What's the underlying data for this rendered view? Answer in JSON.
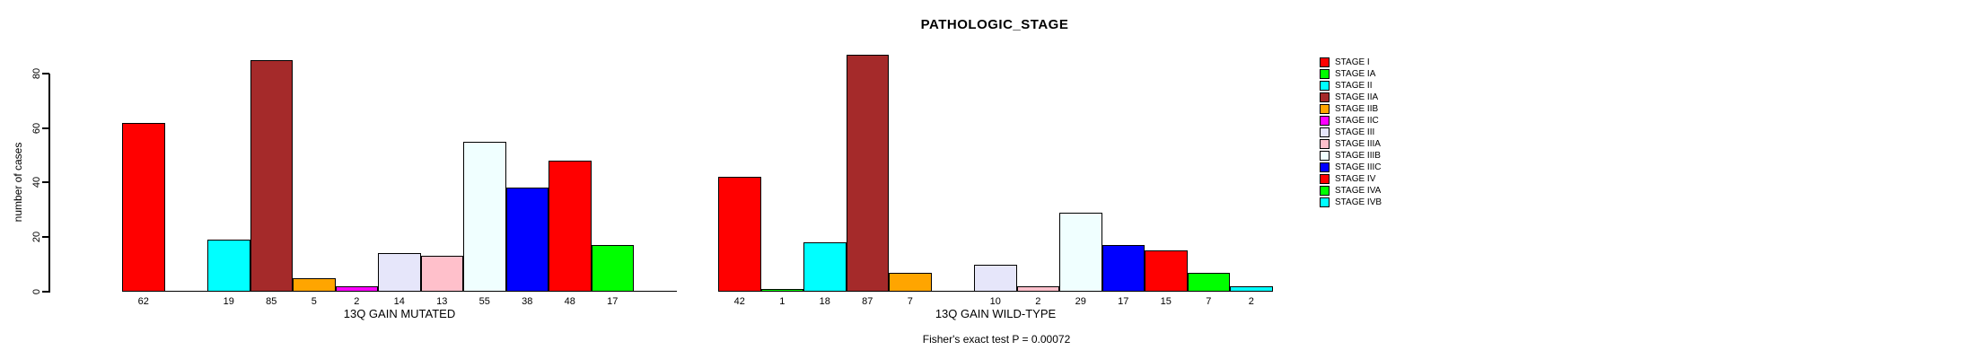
{
  "title": "PATHOLOGIC_STAGE",
  "annotation": "Fisher's exact test P = 0.00072",
  "chart_data": {
    "type": "bar",
    "title": "PATHOLOGIC_STAGE",
    "ylabel": "number of cases",
    "ylim": [
      0,
      87
    ],
    "yticks": [
      0,
      20,
      40,
      60,
      80
    ],
    "grid": false,
    "legend_position": "right",
    "categories": [
      "STAGE I",
      "STAGE IA",
      "STAGE II",
      "STAGE IIA",
      "STAGE IIB",
      "STAGE IIC",
      "STAGE III",
      "STAGE IIIA",
      "STAGE IIIB",
      "STAGE IIIC",
      "STAGE IV",
      "STAGE IVA",
      "STAGE IVB"
    ],
    "colors": [
      "#FF0000",
      "#00FF00",
      "#00FFFF",
      "#A52A2A",
      "#FFA500",
      "#FF00FF",
      "#E6E6FA",
      "#FFC0CB",
      "#F0FFFF",
      "#0000FF",
      "#FF0000",
      "#00FF00",
      "#00FFFF"
    ],
    "panels": [
      {
        "xlabel": "13Q GAIN MUTATED",
        "values": [
          62,
          0,
          19,
          85,
          5,
          2,
          14,
          13,
          55,
          38,
          48,
          17,
          0
        ]
      },
      {
        "xlabel": "13Q GAIN WILD-TYPE",
        "values": [
          42,
          1,
          18,
          87,
          7,
          0,
          10,
          2,
          29,
          17,
          15,
          7,
          2
        ]
      }
    ],
    "bar_value_labels": "values shown under each bar; zero-value bars drawn as flat line with no label",
    "annotation": "Fisher's exact test P = 0.00072"
  },
  "legend": {
    "items": [
      {
        "label": "STAGE I",
        "color": "#FF0000"
      },
      {
        "label": "STAGE IA",
        "color": "#00FF00"
      },
      {
        "label": "STAGE II",
        "color": "#00FFFF"
      },
      {
        "label": "STAGE IIA",
        "color": "#A52A2A"
      },
      {
        "label": "STAGE IIB",
        "color": "#FFA500"
      },
      {
        "label": "STAGE IIC",
        "color": "#FF00FF"
      },
      {
        "label": "STAGE III",
        "color": "#E6E6FA"
      },
      {
        "label": "STAGE IIIA",
        "color": "#FFC0CB"
      },
      {
        "label": "STAGE IIIB",
        "color": "#F0FFFF"
      },
      {
        "label": "STAGE IIIC",
        "color": "#0000FF"
      },
      {
        "label": "STAGE IV",
        "color": "#FF0000"
      },
      {
        "label": "STAGE IVA",
        "color": "#00FF00"
      },
      {
        "label": "STAGE IVB",
        "color": "#00FFFF"
      }
    ]
  }
}
